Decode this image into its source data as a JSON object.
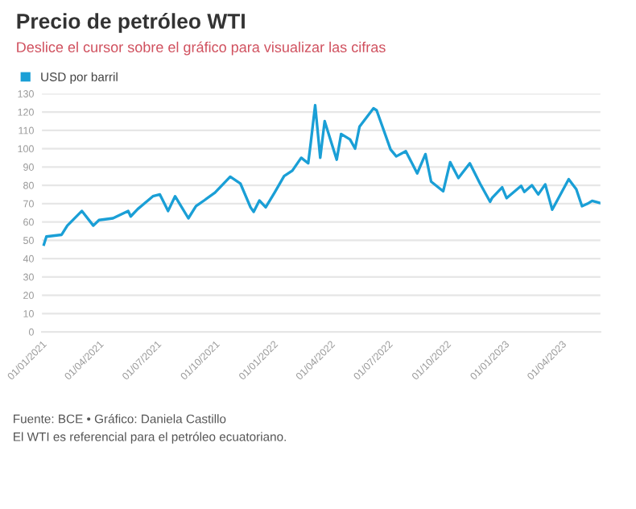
{
  "chart_data": {
    "type": "line",
    "title": "Precio de petróleo WTI",
    "subtitle": "Deslice el cursor sobre el gráfico para visualizar las cifras",
    "x": [
      "2021-01-04",
      "2021-01-08",
      "2021-02-01",
      "2021-02-10",
      "2021-03-05",
      "2021-03-23",
      "2021-04-01",
      "2021-04-23",
      "2021-05-17",
      "2021-05-21",
      "2021-06-01",
      "2021-06-25",
      "2021-07-06",
      "2021-07-19",
      "2021-07-30",
      "2021-08-20",
      "2021-09-01",
      "2021-09-15",
      "2021-10-01",
      "2021-10-25",
      "2021-11-10",
      "2021-11-26",
      "2021-12-01",
      "2021-12-10",
      "2021-12-20",
      "2022-01-03",
      "2022-01-18",
      "2022-01-31",
      "2022-02-14",
      "2022-02-25",
      "2022-03-01",
      "2022-03-08",
      "2022-03-16",
      "2022-03-23",
      "2022-04-11",
      "2022-04-18",
      "2022-05-02",
      "2022-05-10",
      "2022-05-17",
      "2022-06-08",
      "2022-06-13",
      "2022-07-05",
      "2022-07-14",
      "2022-07-29",
      "2022-08-16",
      "2022-08-29",
      "2022-09-07",
      "2022-09-26",
      "2022-10-07",
      "2022-10-20",
      "2022-11-07",
      "2022-11-23",
      "2022-12-09",
      "2022-12-12",
      "2022-12-28",
      "2023-01-04",
      "2023-01-27",
      "2023-02-01",
      "2023-02-13",
      "2023-02-23",
      "2023-03-06",
      "2023-03-17",
      "2023-03-31",
      "2023-04-12",
      "2023-04-24",
      "2023-05-03",
      "2023-05-12",
      "2023-05-19",
      "2023-05-31"
    ],
    "series": [
      {
        "name": "USD por barril",
        "color": "#1a9fd6",
        "values": [
          47.6,
          52,
          53,
          58,
          66,
          58,
          61,
          62,
          66,
          63,
          67,
          74,
          75,
          66,
          74,
          62,
          68.6,
          72,
          76,
          84.7,
          81,
          68,
          65.5,
          71.7,
          68,
          76,
          85,
          88,
          95,
          92,
          103,
          123.7,
          95,
          115,
          94,
          108,
          105,
          100,
          112,
          122,
          120.9,
          99.5,
          95.8,
          98.6,
          86.5,
          97,
          82,
          76.7,
          92.6,
          84,
          92,
          81,
          71,
          73,
          78.9,
          73,
          79.7,
          76.4,
          80,
          75,
          80.5,
          66.7,
          75.6,
          83.3,
          77.8,
          68.6,
          70,
          71.5,
          70.4
        ]
      }
    ],
    "xlim": [
      "2021-01-01",
      "2023-06-01"
    ],
    "xticks": [
      {
        "value": "2021-01-01",
        "label": "01/01/2021"
      },
      {
        "value": "2021-04-01",
        "label": "01/04/2021"
      },
      {
        "value": "2021-07-01",
        "label": "01/07/2021"
      },
      {
        "value": "2021-10-01",
        "label": "01/10/2021"
      },
      {
        "value": "2022-01-01",
        "label": "01/01/2022"
      },
      {
        "value": "2022-04-01",
        "label": "01/04/2022"
      },
      {
        "value": "2022-07-01",
        "label": "01/07/2022"
      },
      {
        "value": "2022-10-01",
        "label": "01/10/2022"
      },
      {
        "value": "2023-01-01",
        "label": "01/01/2023"
      },
      {
        "value": "2023-04-01",
        "label": "01/04/2023"
      }
    ],
    "ylim": [
      0,
      130
    ],
    "yticks": [
      0,
      10,
      20,
      30,
      40,
      50,
      60,
      70,
      80,
      90,
      100,
      110,
      120,
      130
    ],
    "grid": "y",
    "legend": "top left",
    "marker": "none",
    "line_style": "solid",
    "annotations": [
      "Fuente: BCE • Gráfico: Daniela Castillo",
      "El WTI es referencial para el petróleo ecuatoriano."
    ]
  }
}
